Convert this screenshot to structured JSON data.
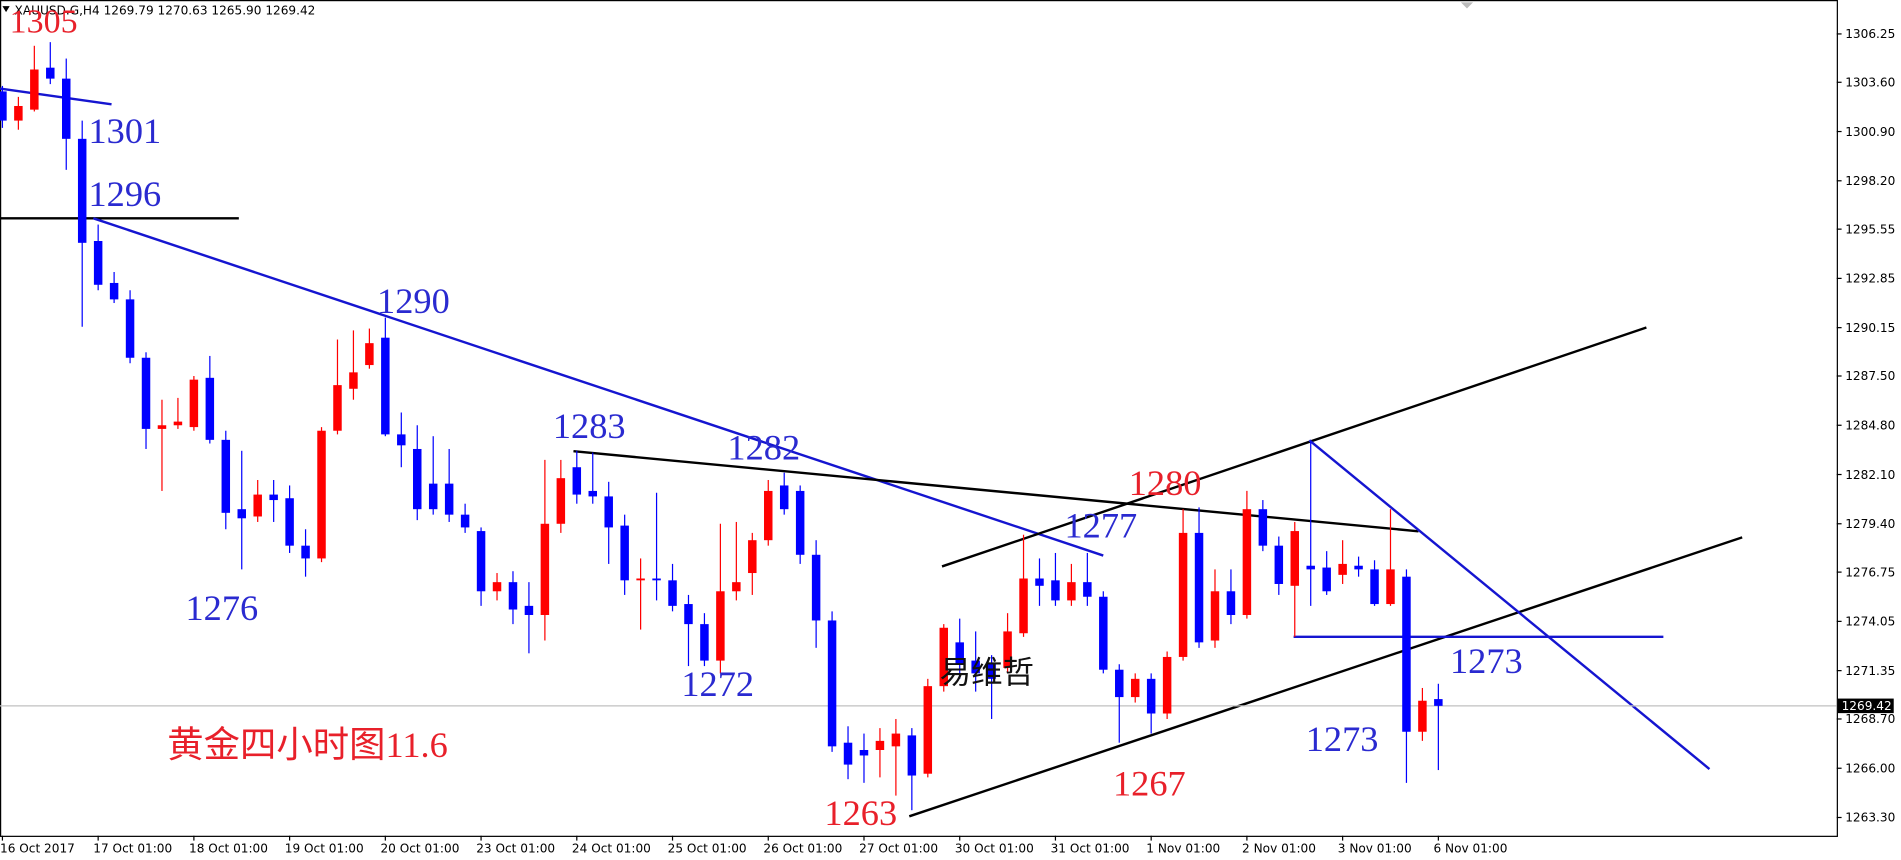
{
  "header": "XAUUSD.G,H4 1269.79 1270.63 1265.90 1269.42",
  "chart_data": {
    "type": "candlestick",
    "categories": [
      "16 Oct 2017",
      null,
      null,
      null,
      null,
      null,
      "17 Oct 01:00",
      null,
      null,
      null,
      null,
      null,
      "18 Oct 01:00",
      null,
      null,
      null,
      null,
      null,
      "19 Oct 01:00",
      null,
      null,
      null,
      null,
      null,
      "20 Oct 01:00",
      null,
      null,
      null,
      null,
      null,
      "23 Oct 01:00",
      null,
      null,
      null,
      null,
      null,
      "24 Oct 01:00",
      null,
      null,
      null,
      null,
      null,
      "25 Oct 01:00",
      null,
      null,
      null,
      null,
      null,
      "26 Oct 01:00",
      null,
      null,
      null,
      null,
      null,
      "27 Oct 01:00",
      null,
      null,
      null,
      null,
      null,
      "30 Oct 01:00",
      null,
      null,
      null,
      null,
      null,
      "31 Oct 01:00",
      null,
      null,
      null,
      null,
      null,
      "1 Nov 01:00",
      null,
      null,
      null,
      null,
      null,
      "2 Nov 01:00",
      null,
      null,
      null,
      null,
      null,
      "3 Nov 01:00",
      null,
      null,
      null,
      null,
      null,
      "6 Nov 01:00"
    ],
    "open": [
      1303.1,
      1301.5,
      1302.1,
      1304.4,
      1303.8,
      1300.5,
      1294.9,
      1292.6,
      1291.7,
      1288.5,
      1284.6,
      1284.8,
      1284.7,
      1287.4,
      1284.0,
      1280.2,
      1279.8,
      1281.0,
      1280.8,
      1278.2,
      1277.5,
      1284.5,
      1286.8,
      1288.1,
      1289.6,
      1284.3,
      1283.5,
      1281.6,
      1281.6,
      1279.9,
      1279.0,
      1275.7,
      1276.2,
      1274.9,
      1274.4,
      1279.4,
      1282.5,
      1281.2,
      1280.9,
      1279.3,
      1276.3,
      1276.4,
      1276.3,
      1275.0,
      1273.9,
      1271.9,
      1275.7,
      1276.7,
      1278.5,
      1281.5,
      1281.2,
      1277.7,
      1274.1,
      1267.4,
      1267.0,
      1267.0,
      1267.2,
      1267.8,
      1265.7,
      1270.5,
      1272.9,
      1271.9,
      1271.7,
      1271.5,
      1273.4,
      1276.4,
      1276.3,
      1275.2,
      1276.2,
      1275.4,
      1271.4,
      1269.9,
      1270.9,
      1269.0,
      1272.1,
      1278.9,
      1273.0,
      1275.7,
      1274.4,
      1280.2,
      1278.2,
      1276.0,
      1277.1,
      1277.0,
      1276.6,
      1277.1,
      1276.9,
      1275.0,
      1276.5,
      1268.0,
      1269.79
    ],
    "high": [
      1303.4,
      1302.8,
      1305.6,
      1305.8,
      1304.9,
      1301.5,
      1295.8,
      1293.2,
      1292.2,
      1288.8,
      1286.2,
      1286.3,
      1287.5,
      1288.6,
      1284.5,
      1283.4,
      1281.8,
      1281.8,
      1281.5,
      1279.1,
      1284.7,
      1289.5,
      1290.0,
      1290.1,
      1290.7,
      1285.5,
      1284.8,
      1284.2,
      1283.5,
      1280.5,
      1279.2,
      1276.7,
      1276.8,
      1276.2,
      1282.9,
      1282.9,
      1283.4,
      1283.3,
      1281.7,
      1279.9,
      1277.5,
      1281.1,
      1277.2,
      1275.5,
      1274.5,
      1279.4,
      1279.5,
      1278.9,
      1281.8,
      1282.2,
      1281.5,
      1278.5,
      1274.6,
      1268.3,
      1267.9,
      1268.2,
      1268.7,
      1268.2,
      1270.9,
      1273.9,
      1274.2,
      1273.5,
      1272.2,
      1274.5,
      1278.8,
      1277.5,
      1277.8,
      1277.2,
      1277.8,
      1275.7,
      1271.7,
      1271.2,
      1271.2,
      1272.4,
      1280.2,
      1280.3,
      1276.9,
      1276.9,
      1281.2,
      1280.7,
      1278.7,
      1279.5,
      1283.9,
      1277.9,
      1278.5,
      1277.6,
      1277.4,
      1280.2,
      1276.9,
      1270.4,
      1270.63
    ],
    "low": [
      1301.1,
      1301.0,
      1302.0,
      1303.5,
      1298.8,
      1290.2,
      1292.2,
      1291.5,
      1288.2,
      1283.5,
      1281.2,
      1284.6,
      1284.5,
      1283.8,
      1279.1,
      1276.9,
      1279.5,
      1279.5,
      1277.8,
      1276.5,
      1277.3,
      1284.3,
      1286.2,
      1287.9,
      1284.2,
      1282.5,
      1279.6,
      1279.9,
      1279.5,
      1278.9,
      1274.9,
      1275.2,
      1273.9,
      1272.3,
      1273.0,
      1278.9,
      1280.5,
      1280.5,
      1277.2,
      1275.5,
      1273.6,
      1275.2,
      1274.6,
      1271.6,
      1271.6,
      1271.2,
      1275.2,
      1275.5,
      1278.2,
      1279.9,
      1277.2,
      1272.6,
      1266.9,
      1265.4,
      1265.2,
      1265.5,
      1264.5,
      1263.7,
      1265.5,
      1270.2,
      1270.9,
      1270.2,
      1268.7,
      1271.2,
      1273.2,
      1274.9,
      1274.9,
      1274.9,
      1274.9,
      1271.2,
      1267.4,
      1269.6,
      1267.9,
      1268.7,
      1271.9,
      1272.6,
      1272.6,
      1273.9,
      1274.2,
      1277.9,
      1275.5,
      1273.2,
      1274.9,
      1275.5,
      1276.1,
      1276.5,
      1274.9,
      1274.9,
      1265.2,
      1267.5,
      1265.9
    ],
    "close": [
      1301.5,
      1302.3,
      1304.3,
      1303.8,
      1300.5,
      1294.8,
      1292.5,
      1291.7,
      1288.5,
      1284.6,
      1284.8,
      1285.0,
      1287.3,
      1284.0,
      1280.0,
      1279.7,
      1281.0,
      1280.7,
      1278.2,
      1277.5,
      1284.5,
      1287.0,
      1287.7,
      1289.3,
      1284.3,
      1283.7,
      1280.2,
      1280.2,
      1279.9,
      1279.2,
      1275.7,
      1276.2,
      1274.7,
      1274.4,
      1279.4,
      1281.9,
      1281.0,
      1280.9,
      1279.2,
      1276.3,
      1276.4,
      1276.3,
      1274.9,
      1273.9,
      1271.9,
      1275.7,
      1276.2,
      1278.5,
      1281.2,
      1280.2,
      1277.7,
      1274.1,
      1267.2,
      1266.2,
      1266.7,
      1267.5,
      1267.9,
      1265.6,
      1270.5,
      1273.7,
      1271.7,
      1271.2,
      1270.9,
      1273.5,
      1276.4,
      1276.0,
      1275.2,
      1276.2,
      1275.4,
      1271.4,
      1269.9,
      1270.9,
      1269.0,
      1272.1,
      1278.9,
      1272.9,
      1275.7,
      1274.4,
      1280.2,
      1278.2,
      1276.1,
      1279.0,
      1276.9,
      1275.7,
      1277.2,
      1276.9,
      1275.0,
      1276.9,
      1268.0,
      1269.7,
      1269.42
    ],
    "up_color": "#ff0000",
    "down_color": "#0000ff",
    "ylim": [
      1262.3,
      1308.11
    ],
    "yticks": [
      1306.25,
      {
        "value": 1303.6,
        "label": "1303.60"
      },
      {
        "value": 1300.9,
        "label": "1300.90"
      },
      {
        "value": 1298.2,
        "label": "1298.20"
      },
      1295.55,
      1292.85,
      1290.15,
      {
        "value": 1287.5,
        "label": "1287.50"
      },
      {
        "value": 1284.8,
        "label": "1284.80"
      },
      {
        "value": 1282.1,
        "label": "1282.10"
      },
      {
        "value": 1279.4,
        "label": "1279.40"
      },
      1276.75,
      1274.05,
      1271.35,
      {
        "value": 1268.7,
        "label": "1268.70"
      },
      {
        "value": 1266,
        "label": "1266.00"
      },
      {
        "value": 1263.3,
        "label": "1263.30"
      }
    ],
    "price_line": 1269.42,
    "annotations": [
      {
        "text": "1305",
        "color": "#e8202a"
      },
      {
        "text": "1301",
        "color": "#2a2ad0"
      },
      {
        "text": "1296",
        "color": "#2a2ad0"
      },
      {
        "text": "1290",
        "color": "#2a2ad0"
      },
      {
        "text": "1276",
        "color": "#2a2ad0"
      },
      {
        "text": "1283",
        "color": "#2a2ad0"
      },
      {
        "text": "1282",
        "color": "#2a2ad0"
      },
      {
        "text": "1272",
        "color": "#2a2ad0"
      },
      {
        "text": "1277",
        "color": "#2a2ad0"
      },
      {
        "text": "1280",
        "color": "#e8202a"
      },
      {
        "text": "1263",
        "color": "#e8202a"
      },
      {
        "text": "1267",
        "color": "#e8202a"
      },
      {
        "text": "1273",
        "color": "#2a2ad0"
      },
      {
        "text": "1273",
        "color": "#2a2ad0"
      },
      {
        "text": "易维哲",
        "color": "#111111"
      },
      {
        "text": "黄金四小时图11.6",
        "color": "#e8202a"
      }
    ]
  }
}
